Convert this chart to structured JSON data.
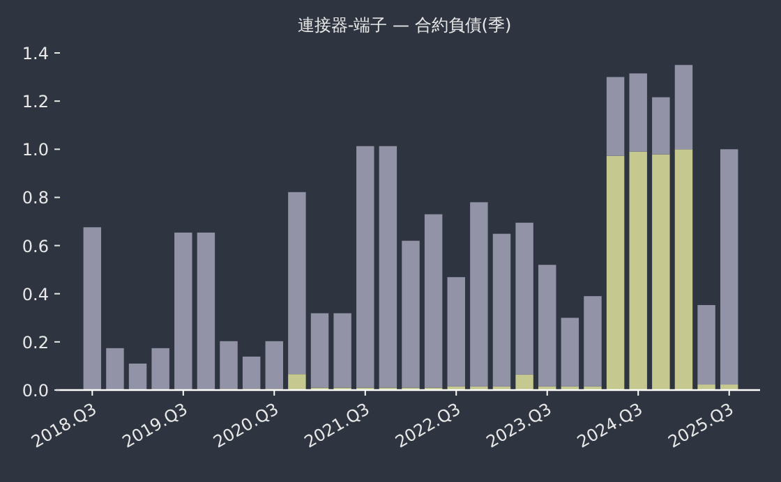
{
  "chart_data": {
    "type": "bar",
    "title": "連接器-端子 — 合約負債(季)",
    "categories": [
      "2018.Q3",
      null,
      null,
      null,
      "2019.Q3",
      null,
      null,
      null,
      "2020.Q3",
      null,
      null,
      null,
      "2021.Q3",
      null,
      null,
      null,
      "2022.Q3",
      null,
      null,
      null,
      "2023.Q3",
      null,
      null,
      null,
      "2024.Q3",
      null,
      null,
      null,
      "2025.Q3"
    ],
    "stacked": true,
    "series": [
      {
        "color": "#c5c88f",
        "values": [
          0,
          0,
          0,
          0,
          0,
          0,
          0.005,
          0.005,
          0.005,
          0.066,
          0.01,
          0.01,
          0.01,
          0.01,
          0.01,
          0.01,
          0.015,
          0.015,
          0.015,
          0.064,
          0.015,
          0.015,
          0.015,
          0.973,
          0.99,
          0.979,
          1.0,
          0.023,
          0.023
        ]
      },
      {
        "color": "#9393a8",
        "values": [
          0.676,
          0.174,
          0.11,
          0.174,
          0.654,
          0.654,
          0.198,
          0.134,
          0.198,
          0.756,
          0.309,
          0.309,
          1.003,
          1.003,
          0.61,
          0.72,
          0.454,
          0.765,
          0.634,
          0.631,
          0.505,
          0.285,
          0.375,
          0.327,
          0.325,
          0.237,
          0.35,
          0.33,
          0.977
        ]
      }
    ],
    "ylim": [
      0,
      1.4
    ],
    "yticks": [
      {
        "value": 0,
        "label": "0.0"
      },
      {
        "value": 0.2,
        "label": "0.2"
      },
      {
        "value": 0.4,
        "label": "0.4"
      },
      {
        "value": 0.6,
        "label": "0.6"
      },
      {
        "value": 0.8,
        "label": "0.8"
      },
      {
        "value": 1.0,
        "label": "1.0"
      },
      {
        "value": 1.2,
        "label": "1.2"
      },
      {
        "value": 1.4,
        "label": "1.4"
      }
    ],
    "grid": false
  }
}
